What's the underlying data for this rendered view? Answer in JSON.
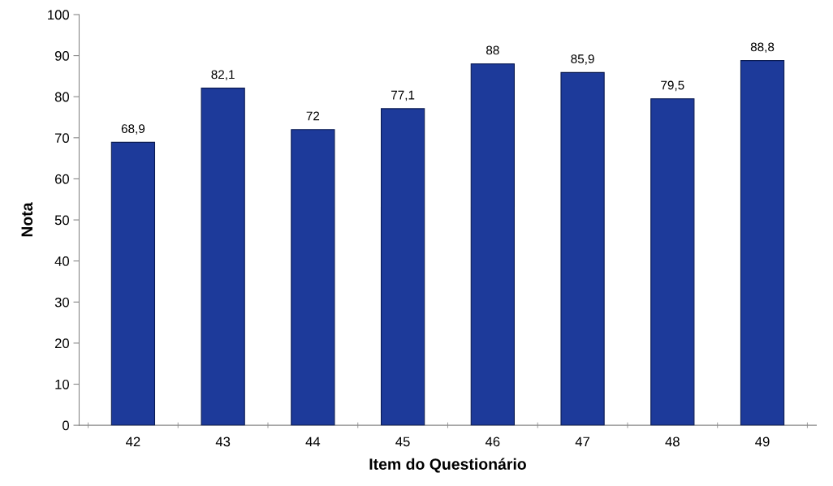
{
  "chart_data": {
    "type": "bar",
    "xlabel": "Item do Questionário",
    "ylabel": "Nota",
    "categories": [
      "42",
      "43",
      "44",
      "45",
      "46",
      "47",
      "48",
      "49"
    ],
    "values": [
      68.9,
      82.1,
      72,
      77.1,
      88,
      85.9,
      79.5,
      88.8
    ],
    "value_labels": [
      "68,9",
      "82,1",
      "72",
      "77,1",
      "88",
      "85,9",
      "79,5",
      "88,8"
    ],
    "color": "#1d3a9a",
    "ylim": [
      0,
      100
    ],
    "yticks": [
      0,
      10,
      20,
      30,
      40,
      50,
      60,
      70,
      80,
      90,
      100
    ],
    "grid": false,
    "legend": false
  }
}
